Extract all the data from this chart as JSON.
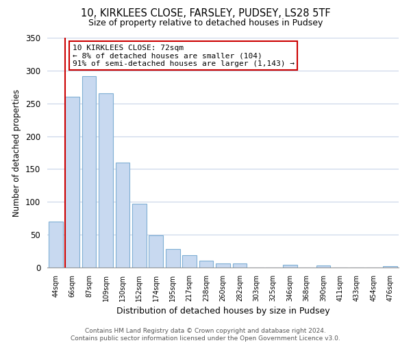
{
  "title": "10, KIRKLEES CLOSE, FARSLEY, PUDSEY, LS28 5TF",
  "subtitle": "Size of property relative to detached houses in Pudsey",
  "xlabel": "Distribution of detached houses by size in Pudsey",
  "ylabel": "Number of detached properties",
  "bar_labels": [
    "44sqm",
    "66sqm",
    "87sqm",
    "109sqm",
    "130sqm",
    "152sqm",
    "174sqm",
    "195sqm",
    "217sqm",
    "238sqm",
    "260sqm",
    "282sqm",
    "303sqm",
    "325sqm",
    "346sqm",
    "368sqm",
    "390sqm",
    "411sqm",
    "433sqm",
    "454sqm",
    "476sqm"
  ],
  "bar_values": [
    70,
    260,
    292,
    265,
    160,
    97,
    49,
    28,
    19,
    10,
    6,
    6,
    0,
    0,
    4,
    0,
    3,
    0,
    0,
    0,
    2
  ],
  "bar_color": "#c8d9f0",
  "bar_edge_color": "#7fafd4",
  "vline_x_index": 1,
  "vline_color": "#cc0000",
  "annotation_text": "10 KIRKLEES CLOSE: 72sqm\n← 8% of detached houses are smaller (104)\n91% of semi-detached houses are larger (1,143) →",
  "annotation_box_color": "#ffffff",
  "annotation_box_edge": "#cc0000",
  "ylim": [
    0,
    350
  ],
  "yticks": [
    0,
    50,
    100,
    150,
    200,
    250,
    300,
    350
  ],
  "footer_line1": "Contains HM Land Registry data © Crown copyright and database right 2024.",
  "footer_line2": "Contains public sector information licensed under the Open Government Licence v3.0.",
  "bg_color": "#ffffff",
  "grid_color": "#c8d4e8"
}
